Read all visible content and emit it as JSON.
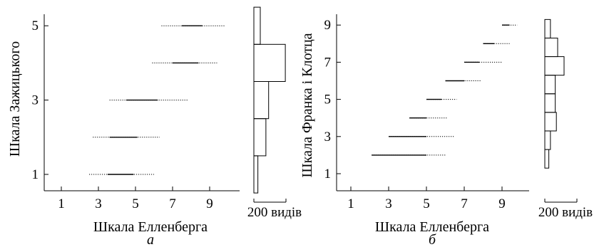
{
  "chart_data": [
    {
      "type": "range",
      "panel": "а",
      "xlabel": "Шкала Елленберга",
      "ylabel": "Шкала Зажицького",
      "x_ticks": [
        "1",
        "3",
        "5",
        "7",
        "9"
      ],
      "y_ticks": [
        "1",
        "3",
        "5"
      ],
      "xlim": [
        0,
        10
      ],
      "ylim": [
        0.5,
        5.5
      ],
      "ranges": [
        {
          "y": 1,
          "dotted_from": 2.5,
          "solid_from": 3.5,
          "solid_to": 4.9,
          "dotted_to": 6.0
        },
        {
          "y": 2,
          "dotted_from": 2.7,
          "solid_from": 3.6,
          "solid_to": 5.1,
          "dotted_to": 6.3
        },
        {
          "y": 3,
          "dotted_from": 3.6,
          "solid_from": 4.5,
          "solid_to": 6.2,
          "dotted_to": 7.8
        },
        {
          "y": 4,
          "dotted_from": 5.9,
          "solid_from": 7.0,
          "solid_to": 8.4,
          "dotted_to": 9.4
        },
        {
          "y": 5,
          "dotted_from": 6.4,
          "solid_from": 7.5,
          "solid_to": 8.6,
          "dotted_to": 9.8
        }
      ],
      "histogram": {
        "scale_label": "200 видів",
        "scale_value": 200,
        "bins": [
          {
            "from": 0.5,
            "to": 1.5,
            "count": 25
          },
          {
            "from": 1.5,
            "to": 2.5,
            "count": 75
          },
          {
            "from": 2.5,
            "to": 3.5,
            "count": 92
          },
          {
            "from": 3.5,
            "to": 4.5,
            "count": 196
          },
          {
            "from": 4.5,
            "to": 5.5,
            "count": 40
          }
        ]
      }
    },
    {
      "type": "range",
      "panel": "б",
      "xlabel": "Шкала Елленберга",
      "ylabel": "Шкала Франка і Клотца",
      "x_ticks": [
        "1",
        "3",
        "5",
        "7",
        "9"
      ],
      "y_ticks": [
        "1",
        "3",
        "5",
        "7",
        "9"
      ],
      "xlim": [
        0,
        10
      ],
      "ylim": [
        0.3,
        9.5
      ],
      "ranges": [
        {
          "y": 2,
          "dotted_from": 2.1,
          "solid_from": 2.1,
          "solid_to": 5.0,
          "dotted_to": 6.0
        },
        {
          "y": 3,
          "dotted_from": 3.0,
          "solid_from": 3.0,
          "solid_to": 5.0,
          "dotted_to": 6.5
        },
        {
          "y": 4,
          "dotted_from": 4.1,
          "solid_from": 4.1,
          "solid_to": 5.0,
          "dotted_to": 6.1
        },
        {
          "y": 5,
          "dotted_from": 5.0,
          "solid_from": 5.0,
          "solid_to": 5.8,
          "dotted_to": 6.6
        },
        {
          "y": 6,
          "dotted_from": 6.0,
          "solid_from": 6.0,
          "solid_to": 7.0,
          "dotted_to": 7.9
        },
        {
          "y": 7,
          "dotted_from": 7.0,
          "solid_from": 7.0,
          "solid_to": 7.8,
          "dotted_to": 9.0
        },
        {
          "y": 8,
          "dotted_from": 8.0,
          "solid_from": 8.0,
          "solid_to": 8.6,
          "dotted_to": 9.4
        },
        {
          "y": 9,
          "dotted_from": 9.0,
          "solid_from": 9.0,
          "solid_to": 9.4,
          "dotted_to": 9.8
        }
      ],
      "histogram": {
        "scale_label": "200 видів",
        "scale_value": 200,
        "bins": [
          {
            "from": 1.3,
            "to": 2.3,
            "count": 25
          },
          {
            "from": 2.3,
            "to": 3.3,
            "count": 35
          },
          {
            "from": 3.3,
            "to": 4.3,
            "count": 72
          },
          {
            "from": 4.3,
            "to": 5.3,
            "count": 65
          },
          {
            "from": 5.3,
            "to": 6.3,
            "count": 65
          },
          {
            "from": 6.3,
            "to": 7.3,
            "count": 120
          },
          {
            "from": 7.3,
            "to": 8.3,
            "count": 80
          },
          {
            "from": 8.3,
            "to": 9.3,
            "count": 35
          }
        ]
      }
    }
  ]
}
